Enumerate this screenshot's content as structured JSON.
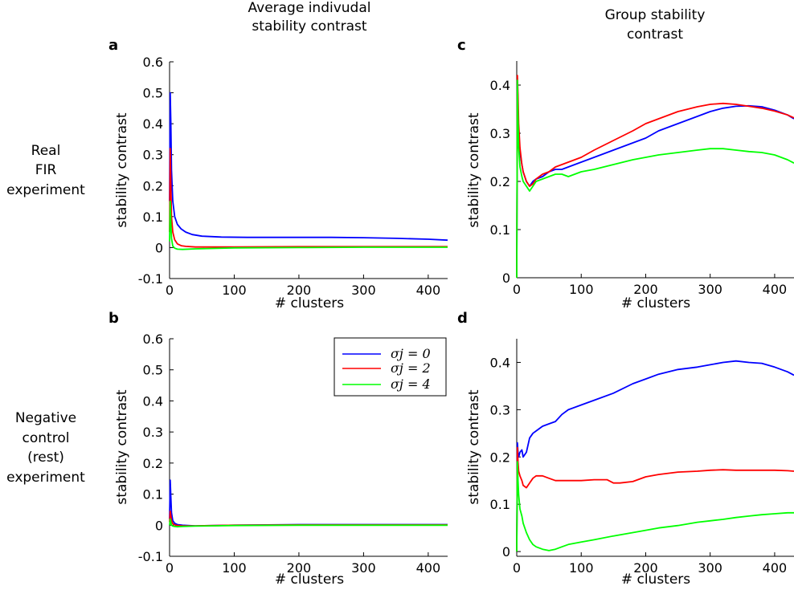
{
  "headers": {
    "left": [
      "Average indivudal",
      "stability contrast"
    ],
    "right": [
      "Group stability",
      "contrast"
    ]
  },
  "row_labels": {
    "top": [
      "Real",
      "FIR",
      "experiment"
    ],
    "bottom": [
      "Negative",
      "control",
      "(rest)",
      "experiment"
    ]
  },
  "legend": {
    "entries": [
      "σj = 0",
      "σj = 2",
      "σj = 4"
    ],
    "colors": [
      "#0000ff",
      "#ff0000",
      "#00ff00"
    ]
  },
  "chart_data": [
    {
      "id": "a",
      "type": "line",
      "panel_label": "a",
      "xlabel": "# clusters",
      "ylabel": "stability contrast",
      "xlim": [
        0,
        430
      ],
      "ylim": [
        -0.1,
        0.6
      ],
      "xticks": [
        0,
        100,
        200,
        300,
        400
      ],
      "yticks": [
        -0.1,
        0,
        0.1,
        0.2,
        0.3,
        0.4,
        0.5,
        0.6
      ],
      "ytick_labels": [
        "-0.1",
        "0",
        "0.1",
        "0.2",
        "0.3",
        "0.4",
        "0.5",
        "0.6"
      ],
      "series": [
        {
          "name": "σj = 0",
          "color": "#0000ff",
          "x": [
            0,
            1,
            2,
            3,
            5,
            8,
            12,
            18,
            25,
            35,
            50,
            80,
            120,
            200,
            250,
            300,
            350,
            400,
            430
          ],
          "y": [
            0.15,
            0.5,
            0.4,
            0.25,
            0.15,
            0.1,
            0.075,
            0.06,
            0.05,
            0.042,
            0.037,
            0.034,
            0.033,
            0.033,
            0.033,
            0.032,
            0.03,
            0.027,
            0.024
          ]
        },
        {
          "name": "σj = 2",
          "color": "#ff0000",
          "x": [
            0,
            1,
            2,
            3,
            5,
            8,
            12,
            18,
            25,
            40,
            60,
            100,
            200,
            300,
            400,
            430
          ],
          "y": [
            0.05,
            0.32,
            0.2,
            0.1,
            0.05,
            0.025,
            0.012,
            0.006,
            0.004,
            0.002,
            0.002,
            0.002,
            0.003,
            0.003,
            0.003,
            0.003
          ]
        },
        {
          "name": "σj = 4",
          "color": "#00ff00",
          "x": [
            0,
            1,
            2,
            3,
            5,
            8,
            12,
            20,
            40,
            100,
            200,
            300,
            400,
            430
          ],
          "y": [
            0.02,
            0.15,
            0.08,
            0.03,
            0.005,
            -0.002,
            -0.005,
            -0.006,
            -0.004,
            -0.001,
            0.0,
            0.001,
            0.001,
            0.001
          ]
        }
      ]
    },
    {
      "id": "b",
      "type": "line",
      "panel_label": "b",
      "xlabel": "# clusters",
      "ylabel": "stability contrast",
      "xlim": [
        0,
        430
      ],
      "ylim": [
        -0.1,
        0.6
      ],
      "xticks": [
        0,
        100,
        200,
        300,
        400
      ],
      "yticks": [
        -0.1,
        0,
        0.1,
        0.2,
        0.3,
        0.4,
        0.5,
        0.6
      ],
      "ytick_labels": [
        "-0.1",
        "0",
        "0.1",
        "0.2",
        "0.3",
        "0.4",
        "0.5",
        "0.6"
      ],
      "series": [
        {
          "name": "σj = 0",
          "color": "#0000ff",
          "x": [
            0,
            1,
            2,
            3,
            5,
            8,
            12,
            20,
            40,
            100,
            200,
            300,
            430
          ],
          "y": [
            0.02,
            0.145,
            0.09,
            0.04,
            0.015,
            0.006,
            0.002,
            0.0,
            -0.002,
            0.0,
            0.002,
            0.002,
            0.002
          ]
        },
        {
          "name": "σj = 2",
          "color": "#ff0000",
          "x": [
            0,
            1,
            2,
            3,
            5,
            8,
            12,
            20,
            40,
            100,
            200,
            300,
            430
          ],
          "y": [
            0.01,
            0.045,
            0.03,
            0.015,
            0.005,
            0.001,
            -0.001,
            -0.002,
            -0.002,
            0.0,
            0.001,
            0.001,
            0.001
          ]
        },
        {
          "name": "σj = 4",
          "color": "#00ff00",
          "x": [
            0,
            1,
            2,
            3,
            5,
            8,
            12,
            20,
            40,
            100,
            200,
            300,
            430
          ],
          "y": [
            0.0,
            0.02,
            0.01,
            0.0,
            -0.003,
            -0.004,
            -0.005,
            -0.004,
            -0.003,
            -0.001,
            0.0,
            0.0,
            0.0
          ]
        }
      ]
    },
    {
      "id": "c",
      "type": "line",
      "panel_label": "c",
      "xlabel": "# clusters",
      "ylabel": "stability contrast",
      "xlim": [
        0,
        430
      ],
      "ylim": [
        0,
        0.45
      ],
      "xticks": [
        0,
        100,
        200,
        300,
        400
      ],
      "yticks": [
        0,
        0.1,
        0.2,
        0.3,
        0.4
      ],
      "ytick_labels": [
        "0",
        "0.1",
        "0.2",
        "0.3",
        "0.4"
      ],
      "series": [
        {
          "name": "σj = 0",
          "color": "#0000ff",
          "x": [
            0,
            1,
            2,
            3,
            5,
            8,
            10,
            15,
            20,
            25,
            30,
            40,
            50,
            60,
            70,
            80,
            100,
            120,
            150,
            180,
            200,
            220,
            250,
            280,
            300,
            320,
            340,
            360,
            380,
            400,
            420,
            430
          ],
          "y": [
            0.0,
            0.4,
            0.35,
            0.3,
            0.26,
            0.235,
            0.22,
            0.2,
            0.19,
            0.2,
            0.205,
            0.21,
            0.22,
            0.225,
            0.225,
            0.23,
            0.24,
            0.25,
            0.265,
            0.28,
            0.29,
            0.305,
            0.32,
            0.335,
            0.345,
            0.352,
            0.356,
            0.357,
            0.355,
            0.348,
            0.338,
            0.33
          ]
        },
        {
          "name": "σj = 2",
          "color": "#ff0000",
          "x": [
            0,
            1,
            2,
            3,
            5,
            8,
            10,
            15,
            20,
            25,
            30,
            40,
            50,
            60,
            70,
            80,
            100,
            120,
            150,
            180,
            200,
            220,
            250,
            280,
            300,
            320,
            340,
            360,
            380,
            400,
            420,
            430
          ],
          "y": [
            0.0,
            0.42,
            0.38,
            0.32,
            0.27,
            0.235,
            0.22,
            0.2,
            0.19,
            0.195,
            0.205,
            0.215,
            0.22,
            0.23,
            0.235,
            0.24,
            0.25,
            0.265,
            0.285,
            0.305,
            0.32,
            0.33,
            0.345,
            0.355,
            0.36,
            0.362,
            0.36,
            0.356,
            0.352,
            0.346,
            0.338,
            0.332
          ]
        },
        {
          "name": "σj = 4",
          "color": "#00ff00",
          "x": [
            0,
            1,
            2,
            3,
            5,
            8,
            10,
            15,
            20,
            25,
            30,
            40,
            50,
            60,
            70,
            80,
            100,
            120,
            150,
            180,
            200,
            220,
            250,
            280,
            300,
            320,
            340,
            360,
            380,
            400,
            420,
            430
          ],
          "y": [
            0.0,
            0.41,
            0.33,
            0.27,
            0.23,
            0.21,
            0.2,
            0.19,
            0.18,
            0.19,
            0.2,
            0.205,
            0.21,
            0.215,
            0.215,
            0.21,
            0.22,
            0.225,
            0.235,
            0.245,
            0.25,
            0.255,
            0.26,
            0.265,
            0.268,
            0.268,
            0.265,
            0.262,
            0.26,
            0.255,
            0.245,
            0.238
          ]
        }
      ]
    },
    {
      "id": "d",
      "type": "line",
      "panel_label": "d",
      "xlabel": "# clusters",
      "ylabel": "stability contrast",
      "xlim": [
        0,
        430
      ],
      "ylim": [
        -0.01,
        0.45
      ],
      "xticks": [
        0,
        100,
        200,
        300,
        400
      ],
      "yticks": [
        0,
        0.1,
        0.2,
        0.3,
        0.4
      ],
      "ytick_labels": [
        "0",
        "0.1",
        "0.2",
        "0.3",
        "0.4"
      ],
      "series": [
        {
          "name": "σj = 0",
          "color": "#0000ff",
          "x": [
            0,
            1,
            2,
            3,
            5,
            8,
            10,
            15,
            20,
            25,
            30,
            40,
            50,
            60,
            70,
            80,
            100,
            120,
            150,
            180,
            200,
            220,
            250,
            280,
            300,
            320,
            340,
            360,
            380,
            400,
            420,
            430
          ],
          "y": [
            0.0,
            0.23,
            0.21,
            0.2,
            0.21,
            0.215,
            0.2,
            0.21,
            0.24,
            0.25,
            0.255,
            0.265,
            0.27,
            0.275,
            0.29,
            0.3,
            0.31,
            0.32,
            0.335,
            0.355,
            0.365,
            0.375,
            0.385,
            0.39,
            0.395,
            0.4,
            0.403,
            0.4,
            0.398,
            0.39,
            0.38,
            0.373
          ]
        },
        {
          "name": "σj = 2",
          "color": "#ff0000",
          "x": [
            0,
            1,
            2,
            3,
            5,
            8,
            10,
            15,
            20,
            25,
            30,
            40,
            50,
            60,
            70,
            80,
            100,
            120,
            140,
            150,
            160,
            180,
            200,
            220,
            250,
            280,
            300,
            320,
            340,
            360,
            380,
            400,
            420,
            430
          ],
          "y": [
            0.0,
            0.22,
            0.19,
            0.17,
            0.16,
            0.15,
            0.14,
            0.135,
            0.145,
            0.155,
            0.16,
            0.16,
            0.155,
            0.15,
            0.15,
            0.15,
            0.15,
            0.152,
            0.152,
            0.145,
            0.145,
            0.148,
            0.158,
            0.163,
            0.168,
            0.17,
            0.172,
            0.173,
            0.172,
            0.172,
            0.172,
            0.172,
            0.171,
            0.17
          ]
        },
        {
          "name": "σj = 4",
          "color": "#00ff00",
          "x": [
            0,
            1,
            2,
            3,
            5,
            8,
            10,
            15,
            20,
            25,
            30,
            40,
            50,
            60,
            70,
            80,
            100,
            120,
            150,
            180,
            200,
            220,
            250,
            280,
            300,
            320,
            340,
            360,
            380,
            400,
            420,
            430
          ],
          "y": [
            0.0,
            0.19,
            0.15,
            0.12,
            0.09,
            0.075,
            0.06,
            0.04,
            0.025,
            0.015,
            0.01,
            0.005,
            0.002,
            0.005,
            0.01,
            0.015,
            0.02,
            0.025,
            0.033,
            0.04,
            0.045,
            0.05,
            0.055,
            0.062,
            0.065,
            0.068,
            0.072,
            0.075,
            0.078,
            0.08,
            0.082,
            0.082
          ]
        }
      ]
    }
  ]
}
